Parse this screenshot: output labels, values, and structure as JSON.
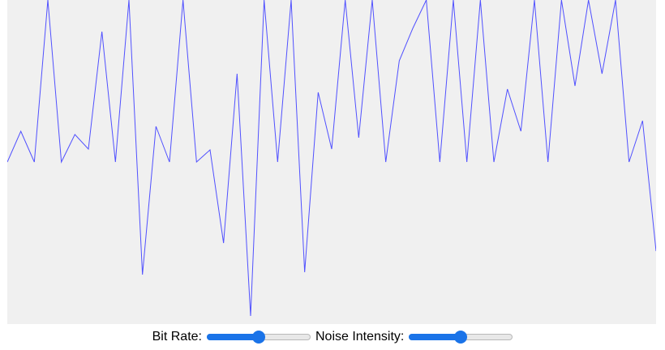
{
  "waveform": {
    "line_color": "#5050ff",
    "background": "#f0f0f0",
    "y_range": [
      0,
      400
    ],
    "samples": [
      200,
      162,
      200,
      0,
      200,
      166,
      184,
      39,
      200,
      0,
      339,
      156,
      200,
      0,
      200,
      185,
      300,
      91,
      390,
      0,
      200,
      0,
      336,
      114,
      184,
      0,
      170,
      0,
      200,
      75,
      35,
      0,
      200,
      0,
      200,
      0,
      200,
      110,
      162,
      0,
      200,
      0,
      106,
      0,
      91,
      0,
      200,
      149,
      310
    ]
  },
  "controls": {
    "bit_rate": {
      "label": "Bit Rate:",
      "value_fraction": 0.5
    },
    "noise_intensity": {
      "label": "Noise Intensity:",
      "value_fraction": 0.5
    },
    "accent_color": "#1a73e8"
  }
}
